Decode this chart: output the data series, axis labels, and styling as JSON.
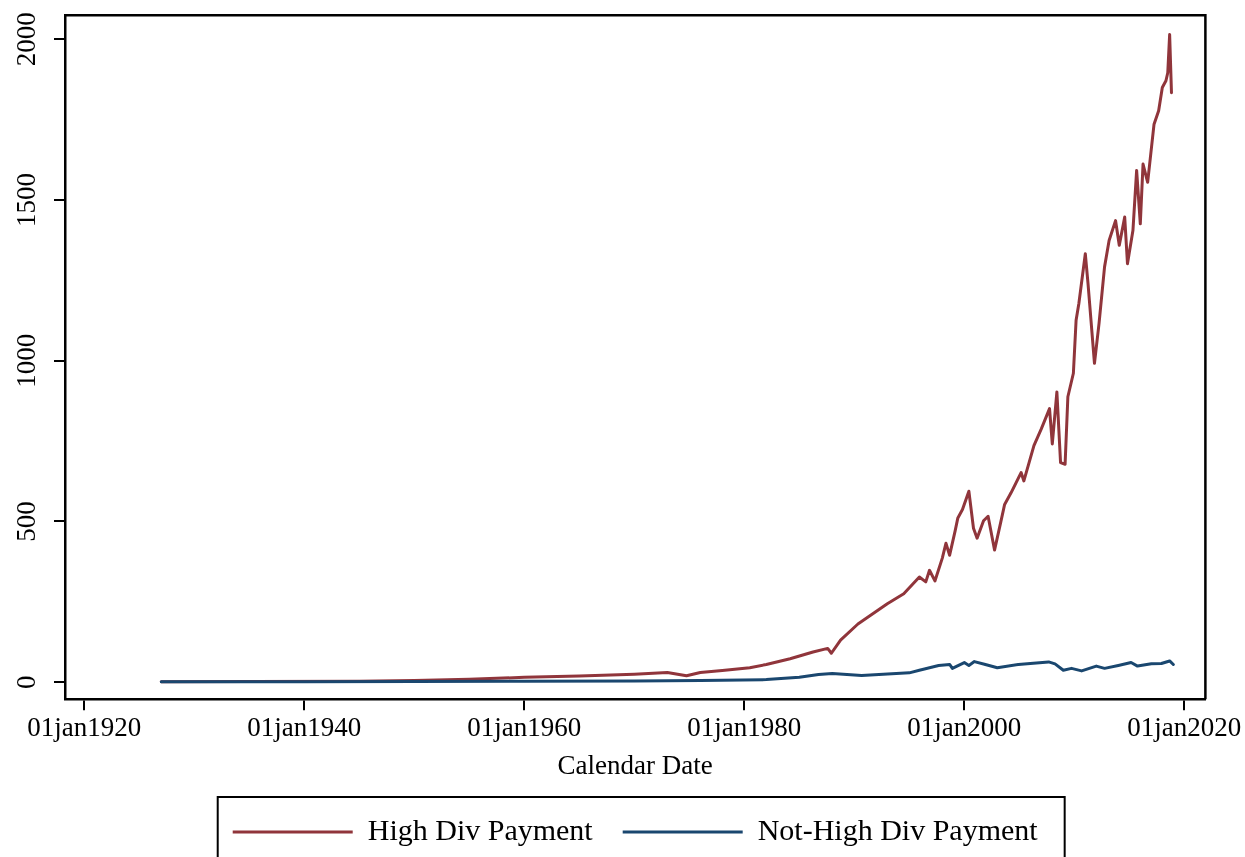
{
  "chart_data": {
    "type": "line",
    "xlabel": "Calendar Date",
    "series": [
      {
        "name": "High Div Payment",
        "color": "#90353b",
        "x": [
          "1927-01",
          "1935-01",
          "1945-01",
          "1950-01",
          "1955-01",
          "1960-01",
          "1965-01",
          "1970-01",
          "1973-01",
          "1974-10",
          "1976-01",
          "1978-01",
          "1980-07",
          "1982-01",
          "1984-03",
          "1986-04",
          "1987-08",
          "1987-12",
          "1988-10",
          "1990-05",
          "1993-01",
          "1994-07",
          "1995-12",
          "1996-07",
          "1996-11",
          "1997-05",
          "1998-01",
          "1998-05",
          "1998-09",
          "1999-03",
          "1999-06",
          "1999-11",
          "2000-06",
          "2000-11",
          "2001-03",
          "2001-10",
          "2002-03",
          "2002-10",
          "2003-05",
          "2003-09",
          "2004-04",
          "2005-03",
          "2005-06",
          "2006-05",
          "2007-01",
          "2007-10",
          "2008-01",
          "2008-06",
          "2008-10",
          "2009-03",
          "2009-06",
          "2009-12",
          "2010-03",
          "2010-06",
          "2011-01",
          "2011-04",
          "2011-11",
          "2012-04",
          "2012-10",
          "2013-03",
          "2013-10",
          "2014-02",
          "2014-08",
          "2014-11",
          "2015-05",
          "2015-09",
          "2016-01",
          "2016-04",
          "2016-09",
          "2017-04",
          "2017-09",
          "2018-01",
          "2018-05",
          "2018-07",
          "2018-09",
          "2018-11"
        ],
        "values": [
          1,
          2,
          3,
          5,
          9,
          15,
          19,
          25,
          30,
          20,
          30,
          36,
          45,
          55,
          73,
          94,
          105,
          90,
          131,
          181,
          244,
          275,
          327,
          312,
          348,
          315,
          386,
          432,
          395,
          470,
          511,
          537,
          594,
          479,
          448,
          502,
          516,
          411,
          500,
          553,
          589,
          652,
          626,
          736,
          788,
          851,
          741,
          903,
          683,
          678,
          888,
          961,
          1126,
          1178,
          1333,
          1240,
          992,
          1116,
          1292,
          1374,
          1436,
          1359,
          1447,
          1302,
          1405,
          1592,
          1426,
          1612,
          1555,
          1736,
          1778,
          1850,
          1871,
          1896,
          2015,
          1834
        ]
      },
      {
        "name": "Not-High Div Payment",
        "color": "#1a476f",
        "x": [
          "1927-01",
          "1940-01",
          "1950-01",
          "1960-01",
          "1970-01",
          "1976-01",
          "1982-01",
          "1985-01",
          "1986-10",
          "1988-01",
          "1990-09",
          "1995-01",
          "1995-12",
          "1997-09",
          "1998-09",
          "1998-12",
          "2000-01",
          "2000-06",
          "2000-12",
          "2001-12",
          "2003-01",
          "2004-12",
          "2006-01",
          "2007-09",
          "2008-04",
          "2009-01",
          "2009-10",
          "2010-09",
          "2012-01",
          "2012-10",
          "2014-01",
          "2015-03",
          "2015-10",
          "2017-01",
          "2017-12",
          "2018-09",
          "2019-01"
        ],
        "values": [
          1,
          1,
          2,
          3,
          4,
          5,
          8,
          15,
          24,
          27,
          21,
          29,
          37,
          52,
          55,
          43,
          61,
          52,
          64,
          55,
          45,
          55,
          58,
          63,
          57,
          37,
          43,
          35,
          50,
          43,
          52,
          61,
          50,
          57,
          58,
          66,
          55
        ]
      }
    ],
    "xlim": [
      "1918-04",
      "2021-12"
    ],
    "xticks": [
      {
        "value": "1920-01-01",
        "label": "01jan1920"
      },
      {
        "value": "1940-01-01",
        "label": "01jan1940"
      },
      {
        "value": "1960-01-01",
        "label": "01jan1960"
      },
      {
        "value": "1980-01-01",
        "label": "01jan1980"
      },
      {
        "value": "2000-01-01",
        "label": "01jan2000"
      },
      {
        "value": "2020-01-01",
        "label": "01jan2020"
      }
    ],
    "ylim": [
      -53,
      2075
    ],
    "yticks": [
      0,
      500,
      1000,
      1500,
      2000
    ],
    "legend": "bottom"
  }
}
